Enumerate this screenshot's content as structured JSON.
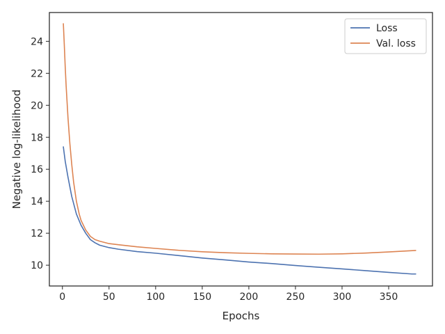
{
  "chart_data": {
    "type": "line",
    "title": "",
    "xlabel": "Epochs",
    "ylabel": "Negative log-likelihood",
    "xlim": [
      -14,
      397
    ],
    "ylim": [
      8.7,
      25.8
    ],
    "xticks": [
      0,
      50,
      100,
      150,
      200,
      250,
      300,
      350
    ],
    "yticks": [
      10,
      12,
      14,
      16,
      18,
      20,
      22,
      24
    ],
    "grid": false,
    "legend_position": "top-right",
    "series": [
      {
        "name": "Loss",
        "color": "#4c72b0",
        "x": [
          1,
          3,
          6,
          10,
          15,
          20,
          25,
          30,
          35,
          40,
          50,
          60,
          80,
          100,
          125,
          150,
          175,
          200,
          225,
          250,
          275,
          300,
          325,
          350,
          375,
          379
        ],
        "y": [
          17.4,
          16.5,
          15.5,
          14.3,
          13.2,
          12.5,
          12.0,
          11.6,
          11.4,
          11.25,
          11.1,
          11.0,
          10.85,
          10.75,
          10.6,
          10.45,
          10.33,
          10.2,
          10.1,
          9.98,
          9.87,
          9.77,
          9.66,
          9.55,
          9.45,
          9.45
        ]
      },
      {
        "name": "Val. loss",
        "color": "#dd8452",
        "x": [
          1,
          2,
          3,
          4,
          5,
          6,
          8,
          10,
          12,
          15,
          18,
          20,
          25,
          30,
          35,
          40,
          50,
          60,
          80,
          100,
          125,
          150,
          175,
          200,
          225,
          250,
          275,
          300,
          325,
          350,
          379
        ],
        "y": [
          25.1,
          23.8,
          22.4,
          21.2,
          20.2,
          19.2,
          17.6,
          16.3,
          15.2,
          14.0,
          13.2,
          12.8,
          12.2,
          11.8,
          11.6,
          11.5,
          11.35,
          11.28,
          11.15,
          11.05,
          10.93,
          10.84,
          10.78,
          10.74,
          10.71,
          10.7,
          10.69,
          10.71,
          10.76,
          10.83,
          10.92
        ]
      }
    ]
  }
}
